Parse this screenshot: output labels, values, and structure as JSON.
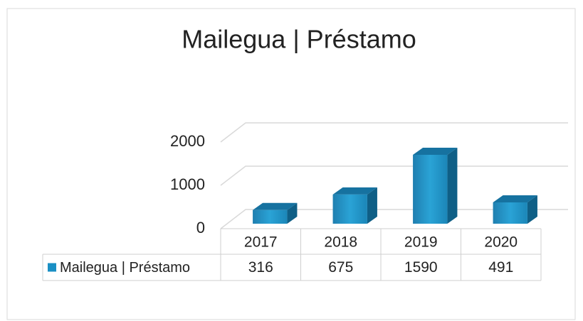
{
  "chart_data": {
    "type": "bar3d",
    "title": "Mailegua | Préstamo",
    "categories": [
      "2017",
      "2018",
      "2019",
      "2020"
    ],
    "series": [
      {
        "name": "Mailegua | Préstamo",
        "color": "#1a8fc4",
        "values": [
          316,
          675,
          1590,
          491
        ]
      }
    ],
    "ylim": [
      0,
      2000
    ],
    "yticks": [
      0,
      1000,
      2000
    ],
    "grid": true,
    "data_table": true
  }
}
